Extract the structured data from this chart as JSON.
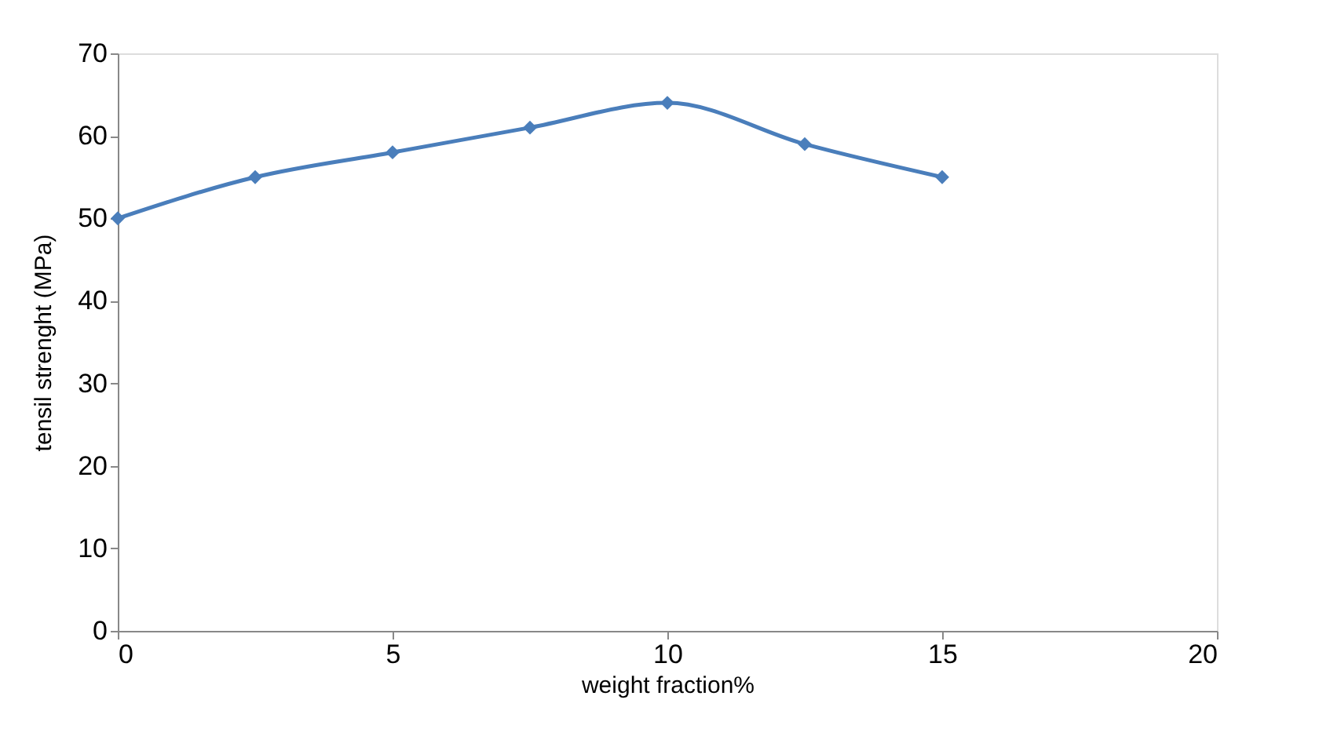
{
  "chart_data": {
    "type": "line",
    "xlabel": "weight fraction%",
    "ylabel": "tensil strenght (MPa)",
    "x": [
      0,
      2.5,
      5,
      7.5,
      10,
      12.5,
      15
    ],
    "series": [
      {
        "color": "#4a7ebb",
        "values": [
          50,
          55,
          58,
          61,
          64,
          59,
          55
        ]
      }
    ],
    "xlim": [
      0,
      20
    ],
    "xticks": [
      0,
      5,
      10,
      15,
      20
    ],
    "ylim": [
      0,
      70
    ],
    "yticks": [
      0,
      10,
      20,
      30,
      40,
      50,
      60,
      70
    ],
    "grid": false,
    "marker": "diamond",
    "line_style": "solid"
  }
}
